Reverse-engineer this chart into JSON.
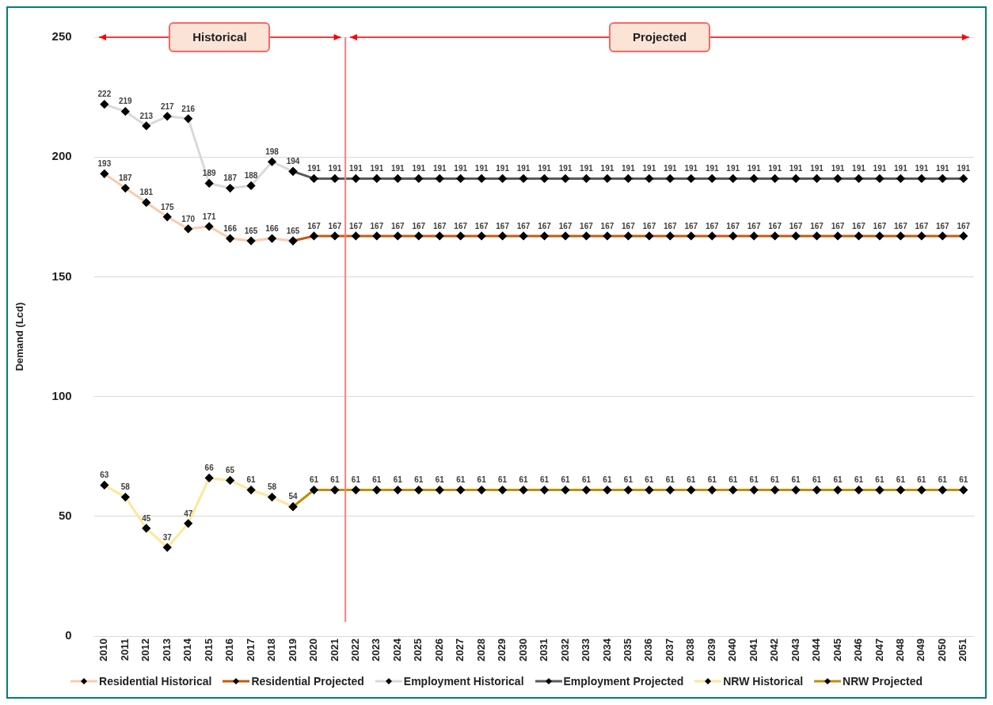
{
  "chart_data": {
    "type": "line",
    "ylabel": "Demand (Lcd)",
    "x": [
      2010,
      2011,
      2012,
      2013,
      2014,
      2015,
      2016,
      2017,
      2018,
      2019,
      2020,
      2021,
      2022,
      2023,
      2024,
      2025,
      2026,
      2027,
      2028,
      2029,
      2030,
      2031,
      2032,
      2033,
      2034,
      2035,
      2036,
      2037,
      2038,
      2039,
      2040,
      2041,
      2042,
      2043,
      2044,
      2045,
      2046,
      2047,
      2048,
      2049,
      2050,
      2051
    ],
    "xlim": [
      2009.5,
      2051.5
    ],
    "xticks": [
      2010,
      2011,
      2012,
      2013,
      2014,
      2015,
      2016,
      2017,
      2018,
      2019,
      2020,
      2021,
      2022,
      2023,
      2024,
      2025,
      2026,
      2027,
      2028,
      2029,
      2030,
      2031,
      2032,
      2033,
      2034,
      2035,
      2036,
      2037,
      2038,
      2039,
      2040,
      2041,
      2042,
      2043,
      2044,
      2045,
      2046,
      2047,
      2048,
      2049,
      2050,
      2051
    ],
    "ylim": [
      0,
      250
    ],
    "yticks": [
      0,
      50,
      100,
      150,
      200,
      250
    ],
    "grid": "y",
    "legend": "bottom",
    "marker": "diamond",
    "line_style": "solid",
    "series": [
      {
        "name": "Residential Historical",
        "color": "#f8cbad",
        "values": [
          193,
          187,
          181,
          175,
          170,
          171,
          166,
          165,
          166,
          165,
          null,
          null,
          null,
          null,
          null,
          null,
          null,
          null,
          null,
          null,
          null,
          null,
          null,
          null,
          null,
          null,
          null,
          null,
          null,
          null,
          null,
          null,
          null,
          null,
          null,
          null,
          null,
          null,
          null,
          null,
          null,
          null
        ],
        "value_labels": [
          "193",
          "187",
          "181",
          "175",
          "170",
          "171",
          "166",
          "165",
          "166",
          "165",
          null,
          null,
          null,
          null,
          null,
          null,
          null,
          null,
          null,
          null,
          null,
          null,
          null,
          null,
          null,
          null,
          null,
          null,
          null,
          null,
          null,
          null,
          null,
          null,
          null,
          null,
          null,
          null,
          null,
          null,
          null,
          null
        ]
      },
      {
        "name": "Residential Projected",
        "color": "#c55a11",
        "values": [
          null,
          null,
          null,
          null,
          null,
          null,
          null,
          null,
          null,
          165,
          167,
          167,
          167,
          167,
          167,
          167,
          167,
          167,
          167,
          167,
          167,
          167,
          167,
          167,
          167,
          167,
          167,
          167,
          167,
          167,
          167,
          167,
          167,
          167,
          167,
          167,
          167,
          167,
          167,
          167,
          167,
          167
        ],
        "value_labels": [
          null,
          null,
          null,
          null,
          null,
          null,
          null,
          null,
          null,
          null,
          "167",
          "167",
          "167",
          "167",
          "167",
          "167",
          "167",
          "167",
          "167",
          "167",
          "167",
          "167",
          "167",
          "167",
          "167",
          "167",
          "167",
          "167",
          "167",
          "167",
          "167",
          "167",
          "167",
          "167",
          "167",
          "167",
          "167",
          "167",
          "167",
          "167",
          "167",
          "167"
        ]
      },
      {
        "name": "Employment Historical",
        "color": "#d9d9d9",
        "values": [
          222,
          219,
          213,
          217,
          216,
          189,
          187,
          188,
          198,
          194,
          null,
          null,
          null,
          null,
          null,
          null,
          null,
          null,
          null,
          null,
          null,
          null,
          null,
          null,
          null,
          null,
          null,
          null,
          null,
          null,
          null,
          null,
          null,
          null,
          null,
          null,
          null,
          null,
          null,
          null,
          null,
          null
        ],
        "value_labels": [
          "222",
          "219",
          "213",
          "217",
          "216",
          "189",
          "187",
          "188",
          "198",
          "194",
          null,
          null,
          null,
          null,
          null,
          null,
          null,
          null,
          null,
          null,
          null,
          null,
          null,
          null,
          null,
          null,
          null,
          null,
          null,
          null,
          null,
          null,
          null,
          null,
          null,
          null,
          null,
          null,
          null,
          null,
          null,
          null
        ]
      },
      {
        "name": "Employment Projected",
        "color": "#595959",
        "values": [
          null,
          null,
          null,
          null,
          null,
          null,
          null,
          null,
          null,
          194,
          191,
          191,
          191,
          191,
          191,
          191,
          191,
          191,
          191,
          191,
          191,
          191,
          191,
          191,
          191,
          191,
          191,
          191,
          191,
          191,
          191,
          191,
          191,
          191,
          191,
          191,
          191,
          191,
          191,
          191,
          191,
          191
        ],
        "value_labels": [
          null,
          null,
          null,
          null,
          null,
          null,
          null,
          null,
          null,
          null,
          "191",
          "191",
          "191",
          "191",
          "191",
          "191",
          "191",
          "191",
          "191",
          "191",
          "191",
          "191",
          "191",
          "191",
          "191",
          "191",
          "191",
          "191",
          "191",
          "191",
          "191",
          "191",
          "191",
          "191",
          "191",
          "191",
          "191",
          "191",
          "191",
          "191",
          "191",
          "191"
        ]
      },
      {
        "name": "NRW Historical",
        "color": "#ffe699",
        "values": [
          63,
          58,
          45,
          37,
          47,
          66,
          65,
          61,
          58,
          54,
          null,
          null,
          null,
          null,
          null,
          null,
          null,
          null,
          null,
          null,
          null,
          null,
          null,
          null,
          null,
          null,
          null,
          null,
          null,
          null,
          null,
          null,
          null,
          null,
          null,
          null,
          null,
          null,
          null,
          null,
          null,
          null
        ],
        "value_labels": [
          "63",
          "58",
          "45",
          "37",
          "47",
          "66",
          "65",
          "61",
          "58",
          "54",
          null,
          null,
          null,
          null,
          null,
          null,
          null,
          null,
          null,
          null,
          null,
          null,
          null,
          null,
          null,
          null,
          null,
          null,
          null,
          null,
          null,
          null,
          null,
          null,
          null,
          null,
          null,
          null,
          null,
          null,
          null,
          null
        ]
      },
      {
        "name": "NRW Projected",
        "color": "#bf9000",
        "values": [
          null,
          null,
          null,
          null,
          null,
          null,
          null,
          null,
          null,
          54,
          61,
          61,
          61,
          61,
          61,
          61,
          61,
          61,
          61,
          61,
          61,
          61,
          61,
          61,
          61,
          61,
          61,
          61,
          61,
          61,
          61,
          61,
          61,
          61,
          61,
          61,
          61,
          61,
          61,
          61,
          61,
          61
        ],
        "value_labels": [
          null,
          null,
          null,
          null,
          null,
          null,
          null,
          null,
          null,
          null,
          "61",
          "61",
          "61",
          "61",
          "61",
          "61",
          "61",
          "61",
          "61",
          "61",
          "61",
          "61",
          "61",
          "61",
          "61",
          "61",
          "61",
          "61",
          "61",
          "61",
          "61",
          "61",
          "61",
          "61",
          "61",
          "61",
          "61",
          "61",
          "61",
          "61",
          "61",
          "61"
        ]
      }
    ],
    "ref_lines": [
      {
        "axis": "x",
        "value": 2021.5,
        "color": "#ff7c80",
        "line_style": "solid"
      }
    ],
    "annotations": [
      "Historical",
      "Projected"
    ]
  }
}
